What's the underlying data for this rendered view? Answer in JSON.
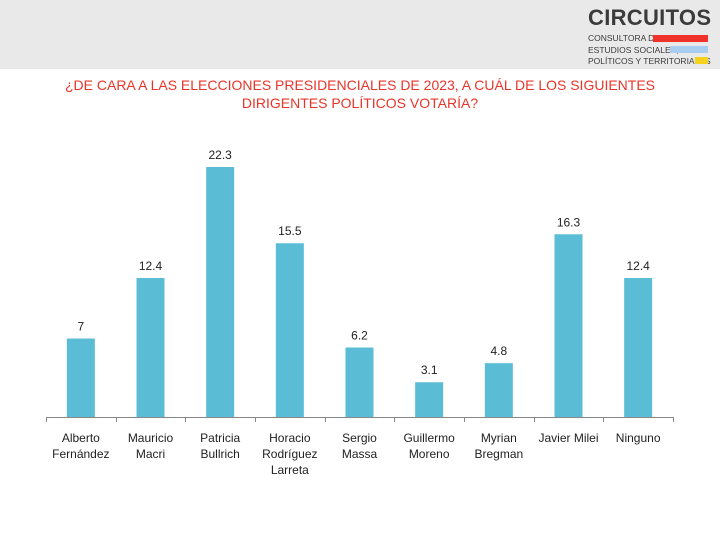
{
  "logo": {
    "name": "CIRCUITOS",
    "lines": [
      "CONSULTORA DE",
      "ESTUDIOS SOCIALES,",
      "POLÍTICOS Y TERRITORIALES"
    ],
    "stripe_colors": [
      "#f0332a",
      "#a9cdf0",
      "#f5d21e"
    ]
  },
  "question": {
    "line1": "¿DE CARA A LAS ELECCIONES PRESIDENCIALES DE 2023, A CUÁL DE LOS SIGUIENTES",
    "line2": "DIRIGENTES POLÍTICOS VOTARÍA?"
  },
  "colors": {
    "bar": "#5bbcd5",
    "axis": "#888888",
    "question": "#e8352a"
  },
  "chart_data": {
    "type": "bar",
    "title": "¿DE CARA A LAS ELECCIONES PRESIDENCIALES DE 2023, A CUÁL DE LOS SIGUIENTES DIRIGENTES POLÍTICOS VOTARÍA?",
    "categories": [
      [
        "Alberto",
        "Fernández"
      ],
      [
        "Mauricio",
        "Macri"
      ],
      [
        "Patricia",
        "Bullrich"
      ],
      [
        "Horacio",
        "Rodríguez",
        "Larreta"
      ],
      [
        "Sergio",
        "Massa"
      ],
      [
        "Guillermo",
        "Moreno"
      ],
      [
        "Myrian",
        "Bregman"
      ],
      [
        "Javier Milei"
      ],
      [
        "Ninguno"
      ]
    ],
    "values": [
      7,
      12.4,
      22.3,
      15.5,
      6.2,
      3.1,
      4.8,
      16.3,
      12.4
    ],
    "value_labels": [
      "7",
      "12.4",
      "22.3",
      "15.5",
      "6.2",
      "3.1",
      "4.8",
      "16.3",
      "12.4"
    ],
    "ylim": [
      0,
      22.3
    ],
    "grid": false,
    "legend": "none",
    "xlabel": "",
    "ylabel": ""
  }
}
